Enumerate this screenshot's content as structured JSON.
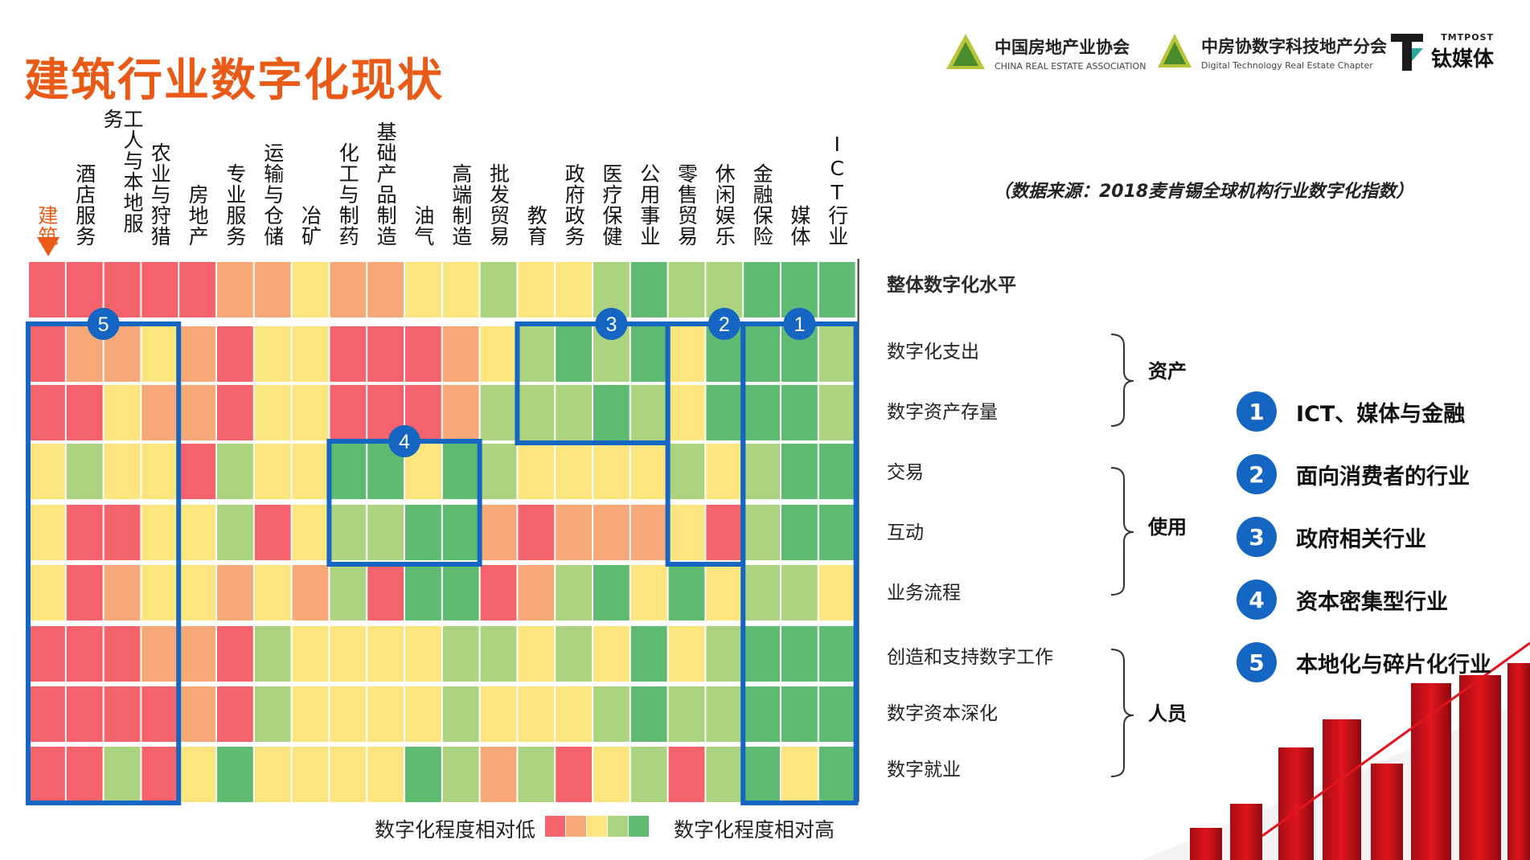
{
  "header": {
    "title": "建筑行业数字化现状",
    "logos": [
      {
        "cn": "中国房地产业协会",
        "en": "CHINA REAL ESTATE ASSOCIATION"
      },
      {
        "cn": "中房协数字科技地产分会",
        "en": "Digital Technology Real Estate Chapter"
      },
      {
        "top": "TMTPOST",
        "cn": "钛媒体"
      }
    ],
    "source": "（数据来源：2018麦肯锡全球机构行业数字化指数）"
  },
  "colors": {
    "accent": "#e85a16",
    "box_blue": "#1466c2",
    "scale": [
      "#f4636b",
      "#f7a878",
      "#fce57e",
      "#abd380",
      "#5fba72"
    ]
  },
  "chart_data": {
    "type": "heatmap",
    "title": "",
    "columns": [
      "建筑",
      "酒店服务",
      "工人与本地服务",
      "农业与狩猎",
      "房地产",
      "专业服务",
      "运输与仓储",
      "冶矿",
      "化工与制药",
      "基础产品制造",
      "油气",
      "高端制造",
      "批发贸易",
      "教育",
      "政府政务",
      "医疗保健",
      "公用事业",
      "零售贸易",
      "休闲娱乐",
      "金融保险",
      "媒体",
      "ICT行业"
    ],
    "highlight_column": "建筑",
    "rows": [
      "整体数字化水平",
      "数字化支出",
      "数字资产存量",
      "交易",
      "互动",
      "业务流程",
      "创造和支持数字工作",
      "数字资本深化",
      "数字就业"
    ],
    "row_groups": [
      {
        "label": "资产",
        "rows": [
          "数字化支出",
          "数字资产存量"
        ]
      },
      {
        "label": "使用",
        "rows": [
          "交易",
          "互动",
          "业务流程"
        ]
      },
      {
        "label": "人员",
        "rows": [
          "创造和支持数字工作",
          "数字资本深化",
          "数字就业"
        ]
      }
    ],
    "scale_note": "levels 1 (数字化程度相对低) to 5 (数字化程度相对高)",
    "values": [
      [
        1,
        1,
        1,
        1,
        1,
        2,
        2,
        3,
        2,
        2,
        3,
        3,
        4,
        3,
        3,
        4,
        5,
        4,
        4,
        5,
        5,
        5
      ],
      [
        1,
        2,
        2,
        3,
        2,
        1,
        3,
        3,
        1,
        1,
        1,
        2,
        3,
        4,
        5,
        4,
        5,
        3,
        5,
        5,
        5,
        4
      ],
      [
        1,
        1,
        3,
        2,
        2,
        1,
        3,
        3,
        1,
        1,
        1,
        2,
        4,
        4,
        4,
        5,
        4,
        3,
        5,
        5,
        5,
        4
      ],
      [
        3,
        4,
        3,
        3,
        1,
        4,
        3,
        3,
        5,
        5,
        3,
        5,
        4,
        3,
        3,
        3,
        3,
        4,
        3,
        4,
        5,
        5
      ],
      [
        3,
        1,
        1,
        3,
        3,
        4,
        1,
        3,
        4,
        4,
        5,
        5,
        2,
        1,
        2,
        2,
        2,
        3,
        1,
        4,
        5,
        5
      ],
      [
        3,
        1,
        2,
        3,
        3,
        2,
        3,
        2,
        4,
        1,
        5,
        5,
        1,
        2,
        4,
        5,
        3,
        5,
        3,
        4,
        4,
        3
      ],
      [
        1,
        1,
        1,
        2,
        2,
        1,
        4,
        3,
        3,
        3,
        3,
        4,
        4,
        3,
        4,
        3,
        5,
        3,
        4,
        5,
        5,
        5
      ],
      [
        1,
        1,
        1,
        1,
        2,
        1,
        4,
        3,
        3,
        3,
        3,
        4,
        3,
        3,
        3,
        4,
        5,
        4,
        4,
        5,
        5,
        5
      ],
      [
        1,
        1,
        4,
        1,
        3,
        5,
        3,
        3,
        3,
        3,
        5,
        4,
        2,
        4,
        1,
        3,
        4,
        1,
        4,
        5,
        3,
        5
      ]
    ],
    "clusters": [
      {
        "id": "1",
        "label": "ICT、媒体与金融",
        "columns": [
          "金融保险",
          "媒体",
          "ICT行业"
        ]
      },
      {
        "id": "2",
        "label": "面向消费者的行业",
        "columns": [
          "零售贸易",
          "休闲娱乐"
        ]
      },
      {
        "id": "3",
        "label": "政府相关行业",
        "columns": [
          "教育",
          "政府政务",
          "医疗保健",
          "公用事业"
        ]
      },
      {
        "id": "4",
        "label": "资本密集型行业",
        "columns": [
          "化工与制药",
          "基础产品制造",
          "油气",
          "高端制造"
        ]
      },
      {
        "id": "5",
        "label": "本地化与碎片化行业",
        "columns": [
          "建筑",
          "酒店服务",
          "工人与本地服务",
          "农业与狩猎"
        ]
      }
    ],
    "legend": {
      "low": "数字化程度相对低",
      "high": "数字化程度相对高"
    }
  }
}
